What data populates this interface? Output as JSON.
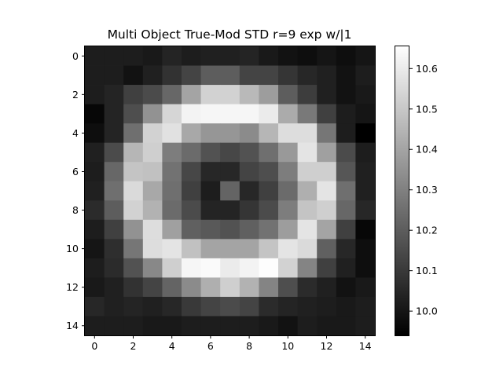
{
  "chart_data": {
    "type": "heatmap",
    "title": "Multi Object True-Mod STD r=9 exp w/|1",
    "xlabel": "",
    "ylabel": "",
    "colormap": "gray",
    "grid": false,
    "legend": "none",
    "x_ticks": [
      "0",
      "2",
      "4",
      "6",
      "8",
      "10",
      "12",
      "14"
    ],
    "y_ticks": [
      "0",
      "2",
      "4",
      "6",
      "8",
      "10",
      "12",
      "14"
    ],
    "colorbar": {
      "ticks": [
        "10.0",
        "10.1",
        "10.2",
        "10.3",
        "10.4",
        "10.5",
        "10.6"
      ],
      "range": [
        9.94,
        10.655
      ]
    },
    "xlim": [
      -0.5,
      14.5
    ],
    "ylim": [
      14.5,
      -0.5
    ],
    "values": [
      [
        10.02,
        10.02,
        10.02,
        10.01,
        10.04,
        10.02,
        10.03,
        10.03,
        10.04,
        10.01,
        9.99,
        9.98,
        10.0,
        9.98,
        10.0
      ],
      [
        10.02,
        10.02,
        9.99,
        10.03,
        10.08,
        10.13,
        10.2,
        10.2,
        10.13,
        10.13,
        10.09,
        10.05,
        10.03,
        9.99,
        10.02
      ],
      [
        10.02,
        10.04,
        10.12,
        10.15,
        10.23,
        10.4,
        10.53,
        10.53,
        10.46,
        10.38,
        10.2,
        10.11,
        10.03,
        9.99,
        10.01
      ],
      [
        9.96,
        10.04,
        10.16,
        10.35,
        10.54,
        10.62,
        10.63,
        10.63,
        10.63,
        10.6,
        10.42,
        10.28,
        10.12,
        10.02,
        10.0
      ],
      [
        9.98,
        10.04,
        10.25,
        10.53,
        10.57,
        10.41,
        10.36,
        10.36,
        10.33,
        10.45,
        10.56,
        10.56,
        10.27,
        10.02,
        9.94
      ],
      [
        10.03,
        10.15,
        10.45,
        10.52,
        10.29,
        10.24,
        10.17,
        10.14,
        10.17,
        10.25,
        10.37,
        10.58,
        10.39,
        10.15,
        10.02
      ],
      [
        10.02,
        10.23,
        10.49,
        10.48,
        10.26,
        10.14,
        10.05,
        10.05,
        10.13,
        10.16,
        10.29,
        10.52,
        10.52,
        10.18,
        10.03
      ],
      [
        10.03,
        10.25,
        10.55,
        10.41,
        10.25,
        10.12,
        10.02,
        10.22,
        10.05,
        10.12,
        10.24,
        10.43,
        10.58,
        10.25,
        10.03
      ],
      [
        10.06,
        10.2,
        10.53,
        10.44,
        10.24,
        10.15,
        10.04,
        10.04,
        10.09,
        10.15,
        10.29,
        10.49,
        10.52,
        10.23,
        10.05
      ],
      [
        10.02,
        10.12,
        10.35,
        10.56,
        10.39,
        10.21,
        10.19,
        10.17,
        10.21,
        10.26,
        10.38,
        10.58,
        10.4,
        10.12,
        9.96
      ],
      [
        10.0,
        10.07,
        10.27,
        10.56,
        10.58,
        10.48,
        10.4,
        10.4,
        10.4,
        10.49,
        10.58,
        10.55,
        10.21,
        10.05,
        9.98
      ],
      [
        10.02,
        10.06,
        10.17,
        10.32,
        10.52,
        10.63,
        10.64,
        10.6,
        10.62,
        10.65,
        10.53,
        10.31,
        10.12,
        10.03,
        9.98
      ],
      [
        10.01,
        10.03,
        10.08,
        10.13,
        10.22,
        10.33,
        10.43,
        10.52,
        10.44,
        10.31,
        10.16,
        10.06,
        10.03,
        9.99,
        10.01
      ],
      [
        10.05,
        10.03,
        10.04,
        10.03,
        10.05,
        10.1,
        10.13,
        10.15,
        10.13,
        10.06,
        10.04,
        10.03,
        10.02,
        10.01,
        10.02
      ],
      [
        10.02,
        10.02,
        10.02,
        10.01,
        10.01,
        10.02,
        10.02,
        10.02,
        10.02,
        10.01,
        9.99,
        10.02,
        10.01,
        10.01,
        10.02
      ]
    ]
  }
}
